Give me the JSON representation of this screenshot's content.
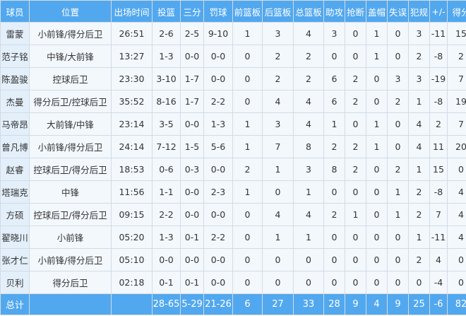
{
  "headers": [
    "球员",
    "位置",
    "出场时间",
    "投篮",
    "三分",
    "罚球",
    "前篮板",
    "后篮板",
    "总篮板",
    "助攻",
    "抢断",
    "盖帽",
    "失误",
    "犯规",
    "+/-",
    "得分"
  ],
  "players": [
    [
      "雷蒙",
      "小前锋/得分后卫",
      "26:51",
      "2-6",
      "2-5",
      "9-10",
      "1",
      "3",
      "4",
      "3",
      "0",
      "1",
      "0",
      "3",
      "-11",
      "15"
    ],
    [
      "范子铭",
      "中锋/大前锋",
      "13:27",
      "1-3",
      "0-0",
      "0-0",
      "0",
      "2",
      "2",
      "0",
      "0",
      "1",
      "0",
      "2",
      "-8",
      "2"
    ],
    [
      "陈盈骏",
      "控球后卫",
      "23:30",
      "3-10",
      "1-7",
      "0-0",
      "0",
      "2",
      "2",
      "6",
      "2",
      "0",
      "3",
      "3",
      "-19",
      "7"
    ],
    [
      "杰曼",
      "得分后卫/控球后卫",
      "35:52",
      "8-16",
      "1-7",
      "2-2",
      "0",
      "4",
      "4",
      "6",
      "2",
      "0",
      "2",
      "1",
      "-8",
      "19"
    ],
    [
      "马帝昂",
      "大前锋/中锋",
      "23:14",
      "3-5",
      "0-0",
      "1-3",
      "1",
      "3",
      "4",
      "1",
      "0",
      "1",
      "0",
      "4",
      "2",
      "7"
    ],
    [
      "曾凡博",
      "小前锋/得分后卫",
      "24:14",
      "7-12",
      "1-5",
      "5-6",
      "1",
      "7",
      "8",
      "2",
      "2",
      "1",
      "0",
      "4",
      "11",
      "20"
    ],
    [
      "赵睿",
      "控球后卫/得分后卫",
      "18:53",
      "0-6",
      "0-3",
      "0-0",
      "2",
      "1",
      "3",
      "8",
      "2",
      "0",
      "2",
      "1",
      "15",
      "0"
    ],
    [
      "塔瑞克",
      "中锋",
      "11:56",
      "1-1",
      "0-0",
      "2-3",
      "1",
      "0",
      "1",
      "0",
      "0",
      "0",
      "1",
      "2",
      "-8",
      "4"
    ],
    [
      "方硕",
      "控球后卫/得分后卫",
      "09:15",
      "2-2",
      "0-0",
      "0-0",
      "0",
      "4",
      "4",
      "2",
      "1",
      "0",
      "1",
      "2",
      "7",
      "4"
    ],
    [
      "翟晓川",
      "小前锋",
      "05:20",
      "1-3",
      "0-1",
      "2-2",
      "0",
      "1",
      "1",
      "0",
      "0",
      "0",
      "0",
      "1",
      "-11",
      "4"
    ],
    [
      "张才仁",
      "小前锋/得分后卫",
      "05:10",
      "0-0",
      "0-0",
      "0-0",
      "0",
      "0",
      "0",
      "0",
      "0",
      "0",
      "0",
      "2",
      "4",
      "0"
    ],
    [
      "贝利",
      "得分后卫",
      "02:18",
      "0-1",
      "0-1",
      "0-0",
      "0",
      "0",
      "0",
      "0",
      "0",
      "0",
      "0",
      "0",
      "-4",
      "0"
    ]
  ],
  "totals": [
    "总计",
    "",
    "",
    "28-65",
    "5-29",
    "21-26",
    "6",
    "27",
    "33",
    "28",
    "9",
    "4",
    "9",
    "25",
    "-6",
    "82"
  ],
  "colors": {
    "header": "#52a8ee",
    "name_cell": "#e3effa",
    "cell": "#f3f8fd"
  }
}
